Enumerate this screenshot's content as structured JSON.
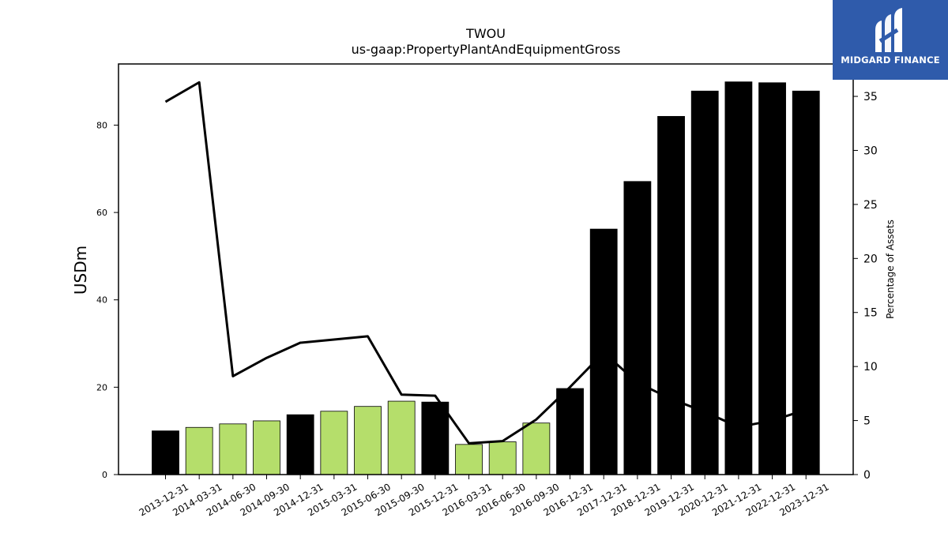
{
  "chart_data": {
    "type": "bar",
    "title": "TWOU",
    "subtitle": "us-gaap:PropertyPlantAndEquipmentGross",
    "ylabel": "USDm",
    "y2label": "Percentage of Assets",
    "ylim": [
      0,
      94
    ],
    "y2lim": [
      0,
      38
    ],
    "yticks": [
      0,
      20,
      40,
      60,
      80
    ],
    "y2ticks": [
      0,
      5,
      10,
      15,
      20,
      25,
      30,
      35
    ],
    "categories": [
      "2013-12-31",
      "2014-03-31",
      "2014-06-30",
      "2014-09-30",
      "2014-12-31",
      "2015-03-31",
      "2015-06-30",
      "2015-09-30",
      "2015-12-31",
      "2016-03-31",
      "2016-06-30",
      "2016-09-30",
      "2016-12-31",
      "2017-12-31",
      "2018-12-31",
      "2019-12-31",
      "2020-12-31",
      "2021-12-31",
      "2022-12-31",
      "2023-12-31"
    ],
    "series": [
      {
        "values": [
          10.0,
          10.8,
          11.6,
          12.3,
          13.7,
          14.5,
          15.6,
          16.8,
          16.6,
          6.9,
          7.5,
          11.8,
          19.7,
          56.2,
          67.1,
          82.0,
          87.8,
          89.9,
          89.7,
          87.8
        ],
        "bar_colors": [
          "#000000",
          "#b5de6b",
          "#b5de6b",
          "#b5de6b",
          "#000000",
          "#b5de6b",
          "#b5de6b",
          "#b5de6b",
          "#000000",
          "#b5de6b",
          "#b5de6b",
          "#b5de6b",
          "#000000",
          "#000000",
          "#000000",
          "#000000",
          "#000000",
          "#000000",
          "#000000",
          "#000000"
        ]
      },
      {
        "type": "line",
        "axis": "right",
        "color": "#000000",
        "values": [
          34.5,
          36.3,
          9.1,
          10.8,
          12.2,
          12.5,
          12.8,
          7.4,
          7.3,
          2.9,
          3.1,
          5.1,
          8.1,
          11.3,
          8.5,
          7.0,
          5.8,
          4.4,
          5.0,
          6.0
        ]
      }
    ]
  },
  "logo": {
    "text": "MIDGARD FINANCE"
  }
}
